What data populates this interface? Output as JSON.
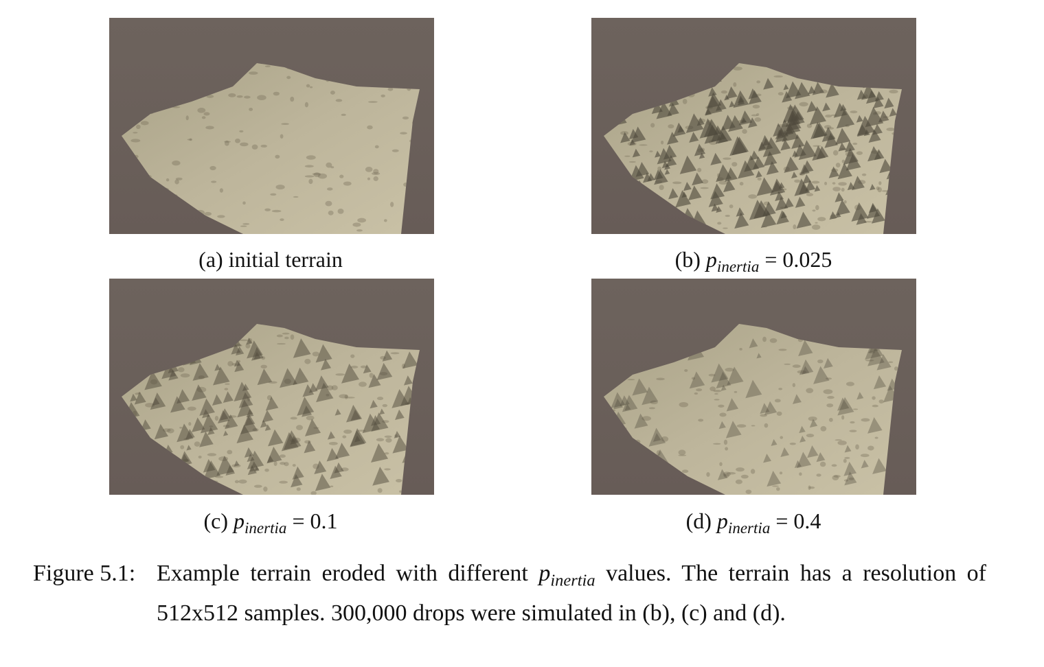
{
  "panels": [
    {
      "label": "(a)",
      "caption": "initial terrain"
    },
    {
      "label": "(b)",
      "symbol": "p",
      "subscript": "inertia",
      "relation": "=",
      "value": "0.025"
    },
    {
      "label": "(c)",
      "symbol": "p",
      "subscript": "inertia",
      "relation": "=",
      "value": "0.1"
    },
    {
      "label": "(d)",
      "symbol": "p",
      "subscript": "inertia",
      "relation": "=",
      "value": "0.4"
    }
  ],
  "figure": {
    "label": "Figure 5.1:",
    "text_before": "Example terrain eroded with different",
    "symbol": "p",
    "subscript": "inertia",
    "text_after": "values.  The terrain has a resolution of 512x512 samples. 300,000 drops were simulated in (b), (c) and (d)."
  }
}
